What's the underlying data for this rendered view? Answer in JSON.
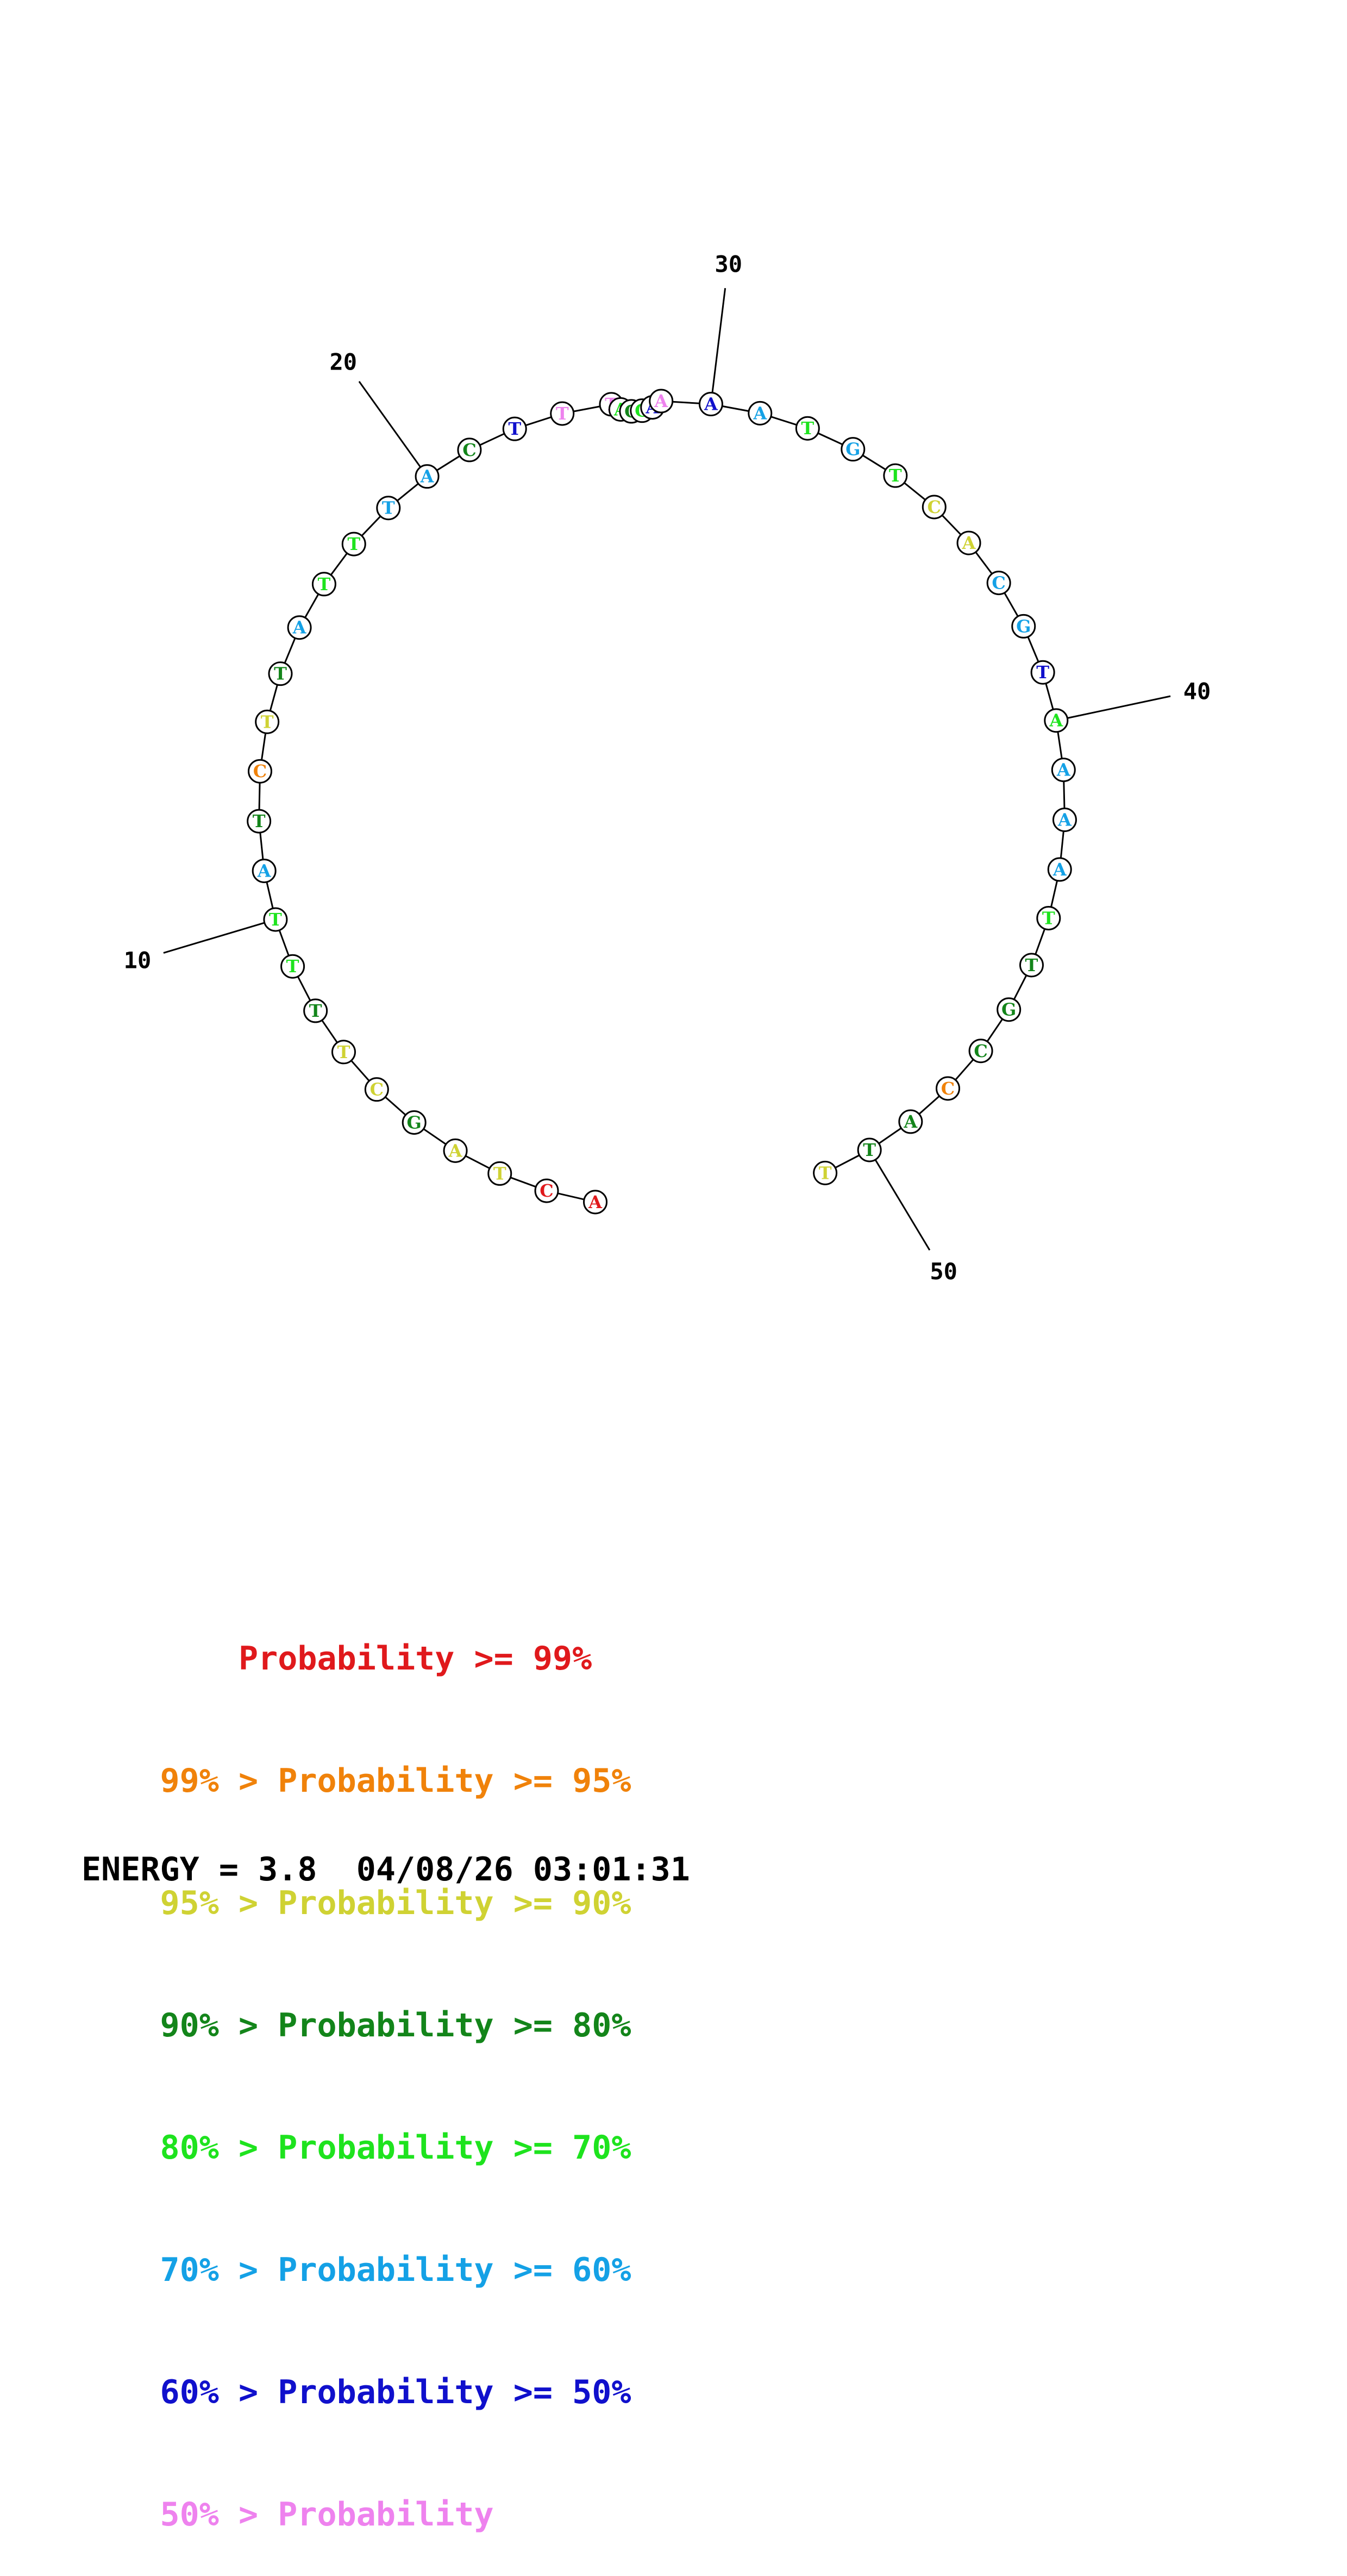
{
  "colors": {
    "p99": "#e0191c",
    "p95": "#f0820a",
    "p90": "#cfd233",
    "p80": "#13851a",
    "p70": "#1ee31e",
    "p60": "#14a1e6",
    "p50": "#1010cc",
    "plow": "#ee82ee"
  },
  "sequence": [
    {
      "n": 1,
      "base": "A",
      "color": "p99"
    },
    {
      "n": 2,
      "base": "C",
      "color": "p99"
    },
    {
      "n": 3,
      "base": "T",
      "color": "p90"
    },
    {
      "n": 4,
      "base": "A",
      "color": "p90"
    },
    {
      "n": 5,
      "base": "G",
      "color": "p80"
    },
    {
      "n": 6,
      "base": "C",
      "color": "p90"
    },
    {
      "n": 7,
      "base": "T",
      "color": "p90"
    },
    {
      "n": 8,
      "base": "T",
      "color": "p80"
    },
    {
      "n": 9,
      "base": "T",
      "color": "p70"
    },
    {
      "n": 10,
      "base": "T",
      "color": "p70"
    },
    {
      "n": 11,
      "base": "A",
      "color": "p60"
    },
    {
      "n": 12,
      "base": "T",
      "color": "p80"
    },
    {
      "n": 13,
      "base": "C",
      "color": "p95"
    },
    {
      "n": 14,
      "base": "T",
      "color": "p90"
    },
    {
      "n": 15,
      "base": "T",
      "color": "p80"
    },
    {
      "n": 16,
      "base": "A",
      "color": "p60"
    },
    {
      "n": 17,
      "base": "T",
      "color": "p70"
    },
    {
      "n": 18,
      "base": "T",
      "color": "p70"
    },
    {
      "n": 19,
      "base": "T",
      "color": "p60"
    },
    {
      "n": 20,
      "base": "A",
      "color": "p60"
    },
    {
      "n": 21,
      "base": "C",
      "color": "p80"
    },
    {
      "n": 22,
      "base": "T",
      "color": "p50"
    },
    {
      "n": 23,
      "base": "T",
      "color": "plow"
    },
    {
      "n": 24,
      "base": "T",
      "color": "plow"
    },
    {
      "n": 25,
      "base": "A",
      "color": "p70"
    },
    {
      "n": 26,
      "base": "C",
      "color": "p80"
    },
    {
      "n": 27,
      "base": "G",
      "color": "p70"
    },
    {
      "n": 28,
      "base": "A",
      "color": "p50"
    },
    {
      "n": 29,
      "base": "A",
      "color": "plow"
    },
    {
      "n": 30,
      "base": "A",
      "color": "p50"
    },
    {
      "n": 31,
      "base": "A",
      "color": "p60"
    },
    {
      "n": 32,
      "base": "T",
      "color": "p70"
    },
    {
      "n": 33,
      "base": "G",
      "color": "p60"
    },
    {
      "n": 34,
      "base": "T",
      "color": "p70"
    },
    {
      "n": 35,
      "base": "C",
      "color": "p90"
    },
    {
      "n": 36,
      "base": "A",
      "color": "p90"
    },
    {
      "n": 37,
      "base": "C",
      "color": "p60"
    },
    {
      "n": 38,
      "base": "G",
      "color": "p60"
    },
    {
      "n": 39,
      "base": "T",
      "color": "p50"
    },
    {
      "n": 40,
      "base": "A",
      "color": "p70"
    },
    {
      "n": 41,
      "base": "A",
      "color": "p60"
    },
    {
      "n": 42,
      "base": "A",
      "color": "p60"
    },
    {
      "n": 43,
      "base": "A",
      "color": "p60"
    },
    {
      "n": 44,
      "base": "T",
      "color": "p70"
    },
    {
      "n": 45,
      "base": "T",
      "color": "p80"
    },
    {
      "n": 46,
      "base": "G",
      "color": "p80"
    },
    {
      "n": 47,
      "base": "C",
      "color": "p80"
    },
    {
      "n": 48,
      "base": "C",
      "color": "p95"
    },
    {
      "n": 49,
      "base": "A",
      "color": "p80"
    },
    {
      "n": 50,
      "base": "T",
      "color": "p80"
    },
    {
      "n": 51,
      "base": "T",
      "color": "p90"
    }
  ],
  "pairs": [
    [
      24,
      29
    ]
  ],
  "position_labels": [
    "10",
    "20",
    "30",
    "40",
    "50"
  ],
  "legend": [
    {
      "prefix": "    ",
      "text": "Probability >= 99%",
      "color": "p99"
    },
    {
      "prefix": "99% > ",
      "text": "Probability >= 95%",
      "color": "p95"
    },
    {
      "prefix": "95% > ",
      "text": "Probability >= 90%",
      "color": "p90"
    },
    {
      "prefix": "90% > ",
      "text": "Probability >= 80%",
      "color": "p80"
    },
    {
      "prefix": "80% > ",
      "text": "Probability >= 70%",
      "color": "p70"
    },
    {
      "prefix": "70% > ",
      "text": "Probability >= 60%",
      "color": "p60"
    },
    {
      "prefix": "60% > ",
      "text": "Probability >= 50%",
      "color": "p50"
    },
    {
      "prefix": "50% > ",
      "text": "Probability",
      "color": "plow"
    }
  ],
  "energy_line": "ENERGY = 3.8  04/08/26 03:01:31"
}
